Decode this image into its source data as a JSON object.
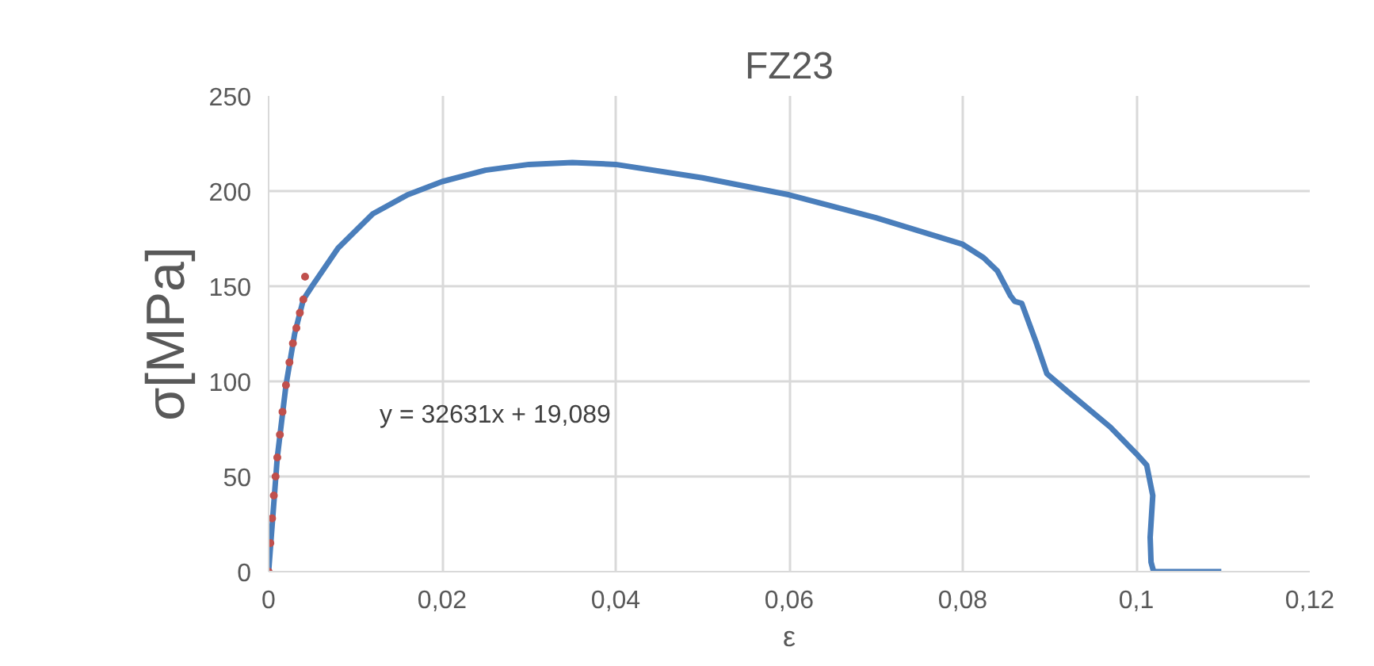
{
  "chart_data": {
    "type": "line",
    "title": "FZ23",
    "xlabel": "ε",
    "ylabel": "σ[MPa]",
    "xlim": [
      0,
      0.12
    ],
    "xticks": [
      {
        "value": 0,
        "label": "0"
      },
      {
        "value": 0.02,
        "label": "0,02"
      },
      {
        "value": 0.04,
        "label": "0,04"
      },
      {
        "value": 0.06,
        "label": "0,06"
      },
      {
        "value": 0.08,
        "label": "0,08"
      },
      {
        "value": 0.1,
        "label": "0,1"
      },
      {
        "value": 0.12,
        "label": "0,12"
      }
    ],
    "ylim": [
      0,
      250
    ],
    "yticks": [
      0,
      50,
      100,
      150,
      200,
      250
    ],
    "grid": true,
    "annotations": [
      "y = 32631x + 19,089"
    ],
    "series": [
      {
        "color": "#4a7ebb",
        "x": [
          0,
          0.001,
          0.002,
          0.003,
          0.004,
          0.005,
          0.008,
          0.012,
          0.016,
          0.02,
          0.025,
          0.03,
          0.035,
          0.04,
          0.05,
          0.06,
          0.07,
          0.08,
          0.0824,
          0.084,
          0.0855,
          0.086,
          0.0868,
          0.0885,
          0.0897,
          0.092,
          0.097,
          0.1,
          0.1012,
          0.1019,
          0.1016,
          0.1017,
          0.102,
          0.1098
        ],
        "values": [
          0,
          60,
          98,
          125,
          143,
          150,
          170,
          188,
          198,
          205,
          211,
          214,
          215,
          214,
          207,
          198,
          186,
          172,
          165,
          158,
          145,
          142,
          141,
          120,
          104,
          95,
          76,
          62,
          56,
          40,
          18,
          5,
          0,
          0
        ]
      },
      {
        "type": "scatter",
        "color": "#c0504d",
        "marker": "circle",
        "x": [
          0,
          0.0002,
          0.0004,
          0.0006,
          0.0008,
          0.001,
          0.0013,
          0.0016,
          0.002,
          0.0024,
          0.0028,
          0.0032,
          0.0036,
          0.004,
          0.0042
        ],
        "values": [
          0,
          15,
          28,
          40,
          50,
          60,
          72,
          84,
          98,
          110,
          120,
          128,
          136,
          143,
          155
        ]
      }
    ]
  }
}
